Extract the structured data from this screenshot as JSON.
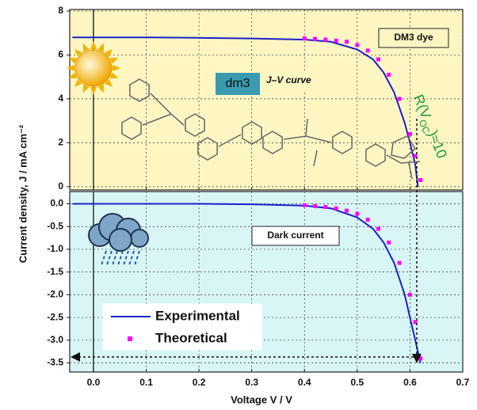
{
  "chart_data": [
    {
      "type": "line",
      "ylabel": "Current density, J / mA cm⁻²",
      "annotations": [
        "DM3 dye",
        "J–V curve",
        "dm3"
      ],
      "rv_label": [
        "R(V",
        "OC",
        ")≈10"
      ],
      "background": "#fdf6c3",
      "grid": true,
      "xlim": [
        -0.045,
        0.7
      ],
      "ylim": [
        -0.15,
        8.07
      ],
      "xticks": [
        0,
        0.1,
        0.2,
        0.3,
        0.4,
        0.5,
        0.6,
        0.7
      ],
      "yticks": [
        0,
        2,
        4,
        6,
        8
      ],
      "series": [
        {
          "color": "#1a22c8",
          "style": "line",
          "x": [
            -0.04,
            0,
            0.1,
            0.2,
            0.3,
            0.4,
            0.45,
            0.5,
            0.53,
            0.55,
            0.57,
            0.59,
            0.6,
            0.61,
            0.615
          ],
          "values": [
            6.8,
            6.8,
            6.8,
            6.78,
            6.75,
            6.7,
            6.6,
            6.25,
            5.8,
            5.2,
            4.3,
            2.9,
            2.0,
            1.0,
            0
          ]
        },
        {
          "color": "#ff00ff",
          "style": "square",
          "x": [
            0.4,
            0.42,
            0.44,
            0.46,
            0.48,
            0.5,
            0.52,
            0.54,
            0.56,
            0.58,
            0.6,
            0.61,
            0.62
          ],
          "values": [
            6.75,
            6.73,
            6.7,
            6.65,
            6.6,
            6.45,
            6.2,
            5.8,
            5.1,
            4.0,
            2.4,
            1.4,
            0.3
          ]
        }
      ]
    },
    {
      "type": "line",
      "xlabel": "Voltage V / V",
      "annotations": [
        "Dark current"
      ],
      "background": "#d9f6f6",
      "grid": true,
      "xlim": [
        -0.045,
        0.7
      ],
      "ylim": [
        -3.7,
        0.27
      ],
      "xticks": [
        {
          "value": 0,
          "label": "0.0"
        },
        0.1,
        0.2,
        0.3,
        0.4,
        0.5,
        0.6,
        0.7
      ],
      "yticks": [
        {
          "value": 0,
          "label": "0.0"
        },
        -0.5,
        {
          "value": -1,
          "label": "-1.0"
        },
        -1.5,
        {
          "value": -2,
          "label": "-2.0"
        },
        -2.5,
        {
          "value": -3,
          "label": "-3.0"
        },
        -3.5
      ],
      "series": [
        {
          "name": "Experimental",
          "color": "#1a22c8",
          "style": "line",
          "x": [
            -0.04,
            0,
            0.1,
            0.2,
            0.3,
            0.4,
            0.45,
            0.5,
            0.53,
            0.55,
            0.57,
            0.59,
            0.6,
            0.61,
            0.62
          ],
          "values": [
            0,
            0,
            0,
            0,
            -0.01,
            -0.04,
            -0.1,
            -0.3,
            -0.55,
            -0.85,
            -1.3,
            -2.0,
            -2.5,
            -3.0,
            -3.5
          ]
        },
        {
          "name": "Theoretical",
          "color": "#ff00ff",
          "style": "square",
          "x": [
            0.4,
            0.42,
            0.44,
            0.46,
            0.48,
            0.5,
            0.52,
            0.54,
            0.56,
            0.58,
            0.6,
            0.61,
            0.62
          ],
          "values": [
            -0.03,
            -0.05,
            -0.07,
            -0.1,
            -0.15,
            -0.22,
            -0.35,
            -0.55,
            -0.85,
            -1.3,
            -2.0,
            -2.6,
            -3.4
          ]
        }
      ]
    }
  ]
}
